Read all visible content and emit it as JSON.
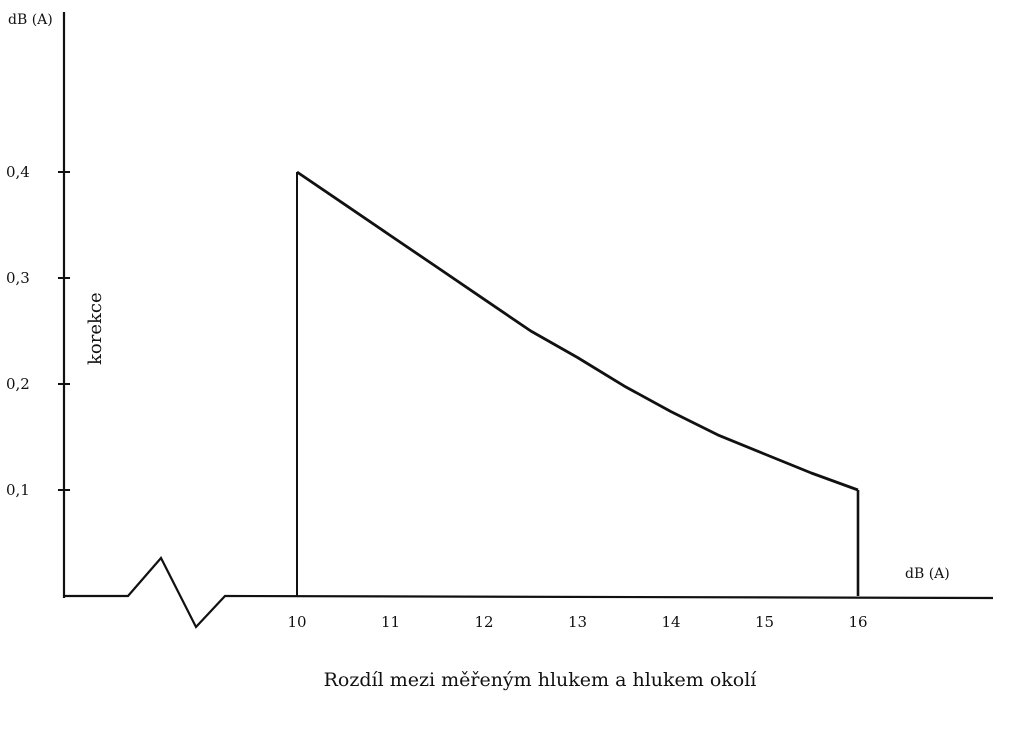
{
  "chart_data": {
    "type": "line",
    "title": "",
    "xlabel": "Rozdíl mezi měřeným hlukem a hlukem okolí",
    "ylabel": "korekce",
    "x_unit": "dB (A)",
    "y_unit": "dB (A)",
    "xlim": [
      10,
      16
    ],
    "ylim": [
      0,
      0.4
    ],
    "x_ticks": [
      "10",
      "11",
      "12",
      "13",
      "14",
      "15",
      "16"
    ],
    "y_ticks": [
      "0,1",
      "0,2",
      "0,3",
      "0,4"
    ],
    "axis_break": true,
    "grid": false,
    "series": [
      {
        "x": [
          10,
          10.5,
          11,
          11.5,
          12,
          12.5,
          13,
          13.5,
          14,
          14.5,
          15,
          15.5,
          16
        ],
        "values": [
          0.4,
          0.37,
          0.34,
          0.31,
          0.28,
          0.25,
          0.225,
          0.198,
          0.174,
          0.152,
          0.134,
          0.116,
          0.1
        ]
      }
    ]
  }
}
